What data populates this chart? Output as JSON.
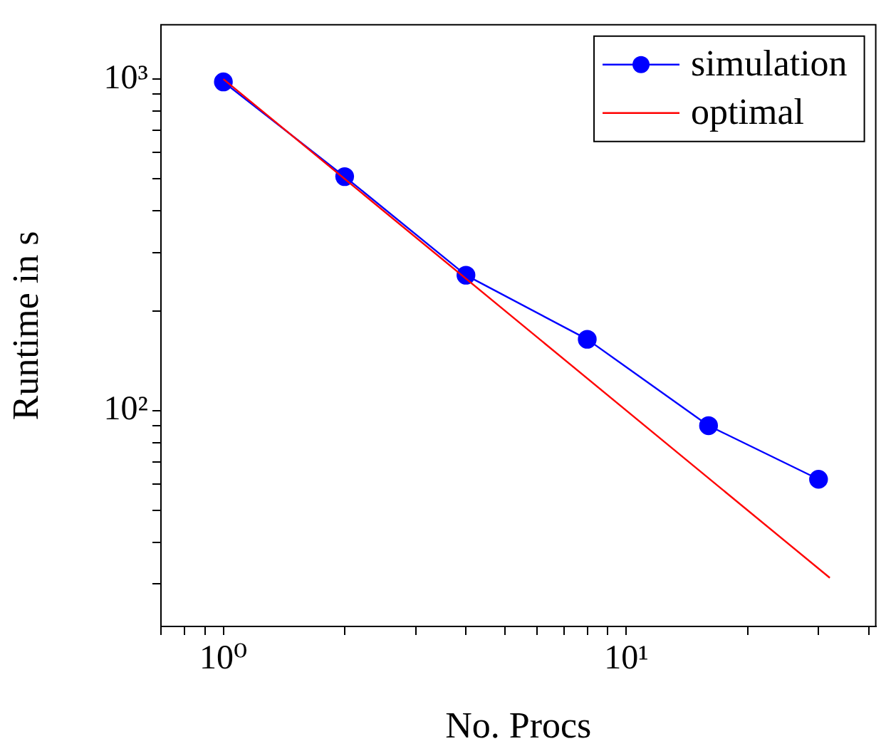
{
  "chart_data": {
    "type": "line",
    "xlabel": "No. Procs",
    "ylabel": "Runtime in s",
    "log": "xy",
    "grid": false,
    "legend": "top right",
    "xlim": [
      0.7,
      41.6
    ],
    "ylim": [
      22.3,
      1459
    ],
    "xticks": [
      {
        "value": 0.7,
        "label": null
      },
      {
        "value": 0.8,
        "label": null
      },
      {
        "value": 0.9,
        "label": null
      },
      {
        "value": 1,
        "label": "10⁰"
      },
      {
        "value": 2,
        "label": null
      },
      {
        "value": 3,
        "label": null
      },
      {
        "value": 4,
        "label": null
      },
      {
        "value": 5,
        "label": null
      },
      {
        "value": 6,
        "label": null
      },
      {
        "value": 7,
        "label": null
      },
      {
        "value": 8,
        "label": null
      },
      {
        "value": 9,
        "label": null
      },
      {
        "value": 10,
        "label": "10¹"
      },
      {
        "value": 20,
        "label": null
      },
      {
        "value": 30,
        "label": null
      },
      {
        "value": 40,
        "label": null
      }
    ],
    "yticks": [
      {
        "value": 30,
        "label": null
      },
      {
        "value": 40,
        "label": null
      },
      {
        "value": 50,
        "label": null
      },
      {
        "value": 60,
        "label": null
      },
      {
        "value": 70,
        "label": null
      },
      {
        "value": 80,
        "label": null
      },
      {
        "value": 90,
        "label": null
      },
      {
        "value": 100,
        "label": "10²"
      },
      {
        "value": 200,
        "label": null
      },
      {
        "value": 300,
        "label": null
      },
      {
        "value": 400,
        "label": null
      },
      {
        "value": 500,
        "label": null
      },
      {
        "value": 600,
        "label": null
      },
      {
        "value": 700,
        "label": null
      },
      {
        "value": 800,
        "label": null
      },
      {
        "value": 900,
        "label": null
      },
      {
        "value": 1000,
        "label": "10³"
      }
    ],
    "series": [
      {
        "name": "simulation",
        "color": "#0000ff",
        "marker": "circle",
        "x": [
          1,
          2,
          4,
          8,
          16,
          30
        ],
        "values": [
          981,
          508,
          256,
          164,
          90,
          62
        ]
      },
      {
        "name": "optimal",
        "color": "#ff0000",
        "marker": "none",
        "x": [
          1,
          32
        ],
        "values": [
          1000,
          31.25
        ]
      }
    ]
  }
}
